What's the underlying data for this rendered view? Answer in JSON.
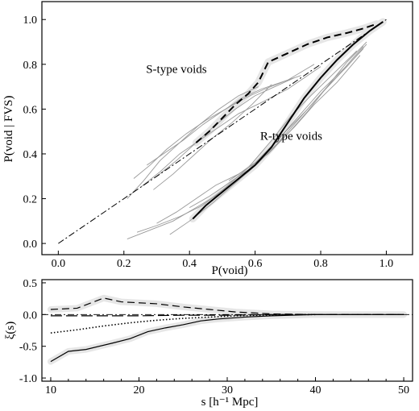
{
  "chart_data": [
    {
      "type": "line",
      "xlabel": "P(void)",
      "ylabel": "P(void | FVS)",
      "xlim": [
        -0.05,
        1.08
      ],
      "ylim": [
        -0.05,
        1.08
      ],
      "xticks": [
        "0.0",
        "0.2",
        "0.4",
        "0.6",
        "0.8",
        "1.0"
      ],
      "yticks": [
        "0.0",
        "0.2",
        "0.4",
        "0.6",
        "0.8",
        "1.0"
      ],
      "annotations": [
        {
          "text": "S-type voids",
          "x": 0.36,
          "y": 0.78
        },
        {
          "text": "R-type voids",
          "x": 0.71,
          "y": 0.48
        }
      ],
      "reference_line": {
        "name": "",
        "style": "dash-dot",
        "x": [
          0.0,
          1.0
        ],
        "y": [
          0.0,
          1.0
        ]
      },
      "series": [
        {
          "style": "dashed",
          "color": "#000000",
          "x": [
            0.42,
            0.46,
            0.5,
            0.54,
            0.58,
            0.61,
            0.64,
            0.7,
            0.76,
            0.82,
            0.88,
            0.93,
            0.97
          ],
          "y": [
            0.45,
            0.5,
            0.56,
            0.62,
            0.67,
            0.72,
            0.81,
            0.85,
            0.89,
            0.92,
            0.94,
            0.96,
            0.98
          ]
        },
        {
          "style": "solid",
          "color": "#000000",
          "x": [
            0.41,
            0.45,
            0.5,
            0.55,
            0.6,
            0.65,
            0.7,
            0.75,
            0.8,
            0.85,
            0.9,
            0.95,
            0.99
          ],
          "y": [
            0.11,
            0.17,
            0.23,
            0.29,
            0.35,
            0.43,
            0.54,
            0.65,
            0.74,
            0.82,
            0.89,
            0.95,
            0.99
          ]
        },
        {
          "style": "thin",
          "color": "#999999",
          "group": "S",
          "x": [
            0.27,
            0.32,
            0.38,
            0.44,
            0.5,
            0.56,
            0.62,
            0.68,
            0.74
          ],
          "y": [
            0.35,
            0.4,
            0.46,
            0.53,
            0.59,
            0.65,
            0.69,
            0.72,
            0.75
          ]
        },
        {
          "style": "thin",
          "color": "#999999",
          "group": "S",
          "x": [
            0.23,
            0.28,
            0.33,
            0.39,
            0.45,
            0.51,
            0.57,
            0.63,
            0.7,
            0.78
          ],
          "y": [
            0.29,
            0.35,
            0.42,
            0.49,
            0.55,
            0.6,
            0.65,
            0.69,
            0.73,
            0.8
          ]
        },
        {
          "style": "thin",
          "color": "#999999",
          "group": "S",
          "x": [
            0.3,
            0.36,
            0.42,
            0.48,
            0.54,
            0.6,
            0.66,
            0.72
          ],
          "y": [
            0.3,
            0.37,
            0.45,
            0.53,
            0.6,
            0.66,
            0.7,
            0.74
          ]
        },
        {
          "style": "thin",
          "color": "#999999",
          "group": "S",
          "x": [
            0.21,
            0.26,
            0.31,
            0.37,
            0.43,
            0.49,
            0.55,
            0.61
          ],
          "y": [
            0.2,
            0.28,
            0.37,
            0.45,
            0.53,
            0.6,
            0.66,
            0.7
          ]
        },
        {
          "style": "thin",
          "color": "#999999",
          "group": "S",
          "x": [
            0.25,
            0.31,
            0.37,
            0.43,
            0.49,
            0.55,
            0.62,
            0.7,
            0.8
          ],
          "y": [
            0.25,
            0.32,
            0.4,
            0.46,
            0.52,
            0.58,
            0.63,
            0.69,
            0.79
          ]
        },
        {
          "style": "thin",
          "color": "#999999",
          "group": "S",
          "x": [
            0.29,
            0.35,
            0.41,
            0.47,
            0.53,
            0.59,
            0.65
          ],
          "y": [
            0.24,
            0.31,
            0.39,
            0.47,
            0.54,
            0.62,
            0.71
          ]
        },
        {
          "style": "thin",
          "color": "#999999",
          "group": "R",
          "x": [
            0.21,
            0.28,
            0.35,
            0.42,
            0.5,
            0.58,
            0.65,
            0.72,
            0.78,
            0.85,
            0.92
          ],
          "y": [
            0.02,
            0.06,
            0.1,
            0.16,
            0.23,
            0.32,
            0.42,
            0.52,
            0.62,
            0.72,
            0.84
          ]
        },
        {
          "style": "thin",
          "color": "#999999",
          "group": "R",
          "x": [
            0.3,
            0.36,
            0.42,
            0.48,
            0.55,
            0.62,
            0.68,
            0.74,
            0.8,
            0.87,
            0.93
          ],
          "y": [
            0.09,
            0.14,
            0.2,
            0.26,
            0.31,
            0.38,
            0.48,
            0.58,
            0.68,
            0.78,
            0.88
          ]
        },
        {
          "style": "thin",
          "color": "#999999",
          "group": "R",
          "x": [
            0.24,
            0.3,
            0.37,
            0.44,
            0.51,
            0.58,
            0.65,
            0.71,
            0.77,
            0.84,
            0.91
          ],
          "y": [
            0.05,
            0.08,
            0.12,
            0.17,
            0.25,
            0.34,
            0.46,
            0.57,
            0.66,
            0.76,
            0.86
          ]
        },
        {
          "style": "thin",
          "color": "#999999",
          "group": "R",
          "x": [
            0.34,
            0.4,
            0.47,
            0.54,
            0.61,
            0.67,
            0.73,
            0.79,
            0.86,
            0.93
          ],
          "y": [
            0.04,
            0.1,
            0.18,
            0.27,
            0.36,
            0.45,
            0.55,
            0.65,
            0.76,
            0.87
          ]
        },
        {
          "style": "thin",
          "color": "#999999",
          "group": "R",
          "x": [
            0.4,
            0.46,
            0.52,
            0.58,
            0.64,
            0.7,
            0.76,
            0.82,
            0.88,
            0.94
          ],
          "y": [
            0.16,
            0.21,
            0.27,
            0.33,
            0.42,
            0.51,
            0.6,
            0.7,
            0.79,
            0.89
          ]
        },
        {
          "style": "thin",
          "color": "#999999",
          "group": "R",
          "x": [
            0.52,
            0.58,
            0.64,
            0.7,
            0.76,
            0.82,
            0.88,
            0.94
          ],
          "y": [
            0.28,
            0.34,
            0.4,
            0.49,
            0.59,
            0.7,
            0.81,
            0.9
          ]
        }
      ]
    },
    {
      "type": "line",
      "xlabel": "s [h⁻¹ Mpc]",
      "ylabel": "ξ(s)",
      "xlim": [
        9,
        51
      ],
      "ylim": [
        -1.05,
        0.55
      ],
      "xticks": [
        "10",
        "20",
        "30",
        "40",
        "50"
      ],
      "yticks": [
        "0.5",
        "0.0",
        "-0.5",
        "-1.0"
      ],
      "reference_line": {
        "style": "dash-dot",
        "y": 0.0
      },
      "series": [
        {
          "style": "dashed",
          "x": [
            10,
            13,
            16,
            18,
            22,
            25,
            28,
            31,
            35,
            40,
            45,
            50
          ],
          "y": [
            0.08,
            0.1,
            0.26,
            0.2,
            0.17,
            0.12,
            0.08,
            0.04,
            0.01,
            0.0,
            0.0,
            0.0
          ]
        },
        {
          "style": "long-dash",
          "x": [
            10,
            15,
            20,
            25,
            30,
            35,
            40,
            45,
            50
          ],
          "y": [
            -0.02,
            -0.02,
            -0.02,
            -0.01,
            -0.01,
            0.0,
            0.0,
            0.0,
            0.0
          ]
        },
        {
          "style": "dotted",
          "x": [
            10,
            13,
            16,
            19,
            22,
            25,
            28,
            31,
            34,
            37,
            40
          ],
          "y": [
            -0.29,
            -0.24,
            -0.18,
            -0.13,
            -0.09,
            -0.06,
            -0.04,
            -0.02,
            -0.01,
            0.0,
            0.0
          ]
        },
        {
          "style": "solid",
          "x": [
            10,
            12,
            14,
            17,
            19,
            21,
            23,
            25,
            27,
            29,
            32,
            35,
            40,
            45,
            50
          ],
          "y": [
            -0.74,
            -0.58,
            -0.55,
            -0.45,
            -0.38,
            -0.27,
            -0.21,
            -0.16,
            -0.1,
            -0.07,
            -0.04,
            -0.02,
            0.0,
            0.0,
            0.0
          ]
        }
      ]
    }
  ]
}
